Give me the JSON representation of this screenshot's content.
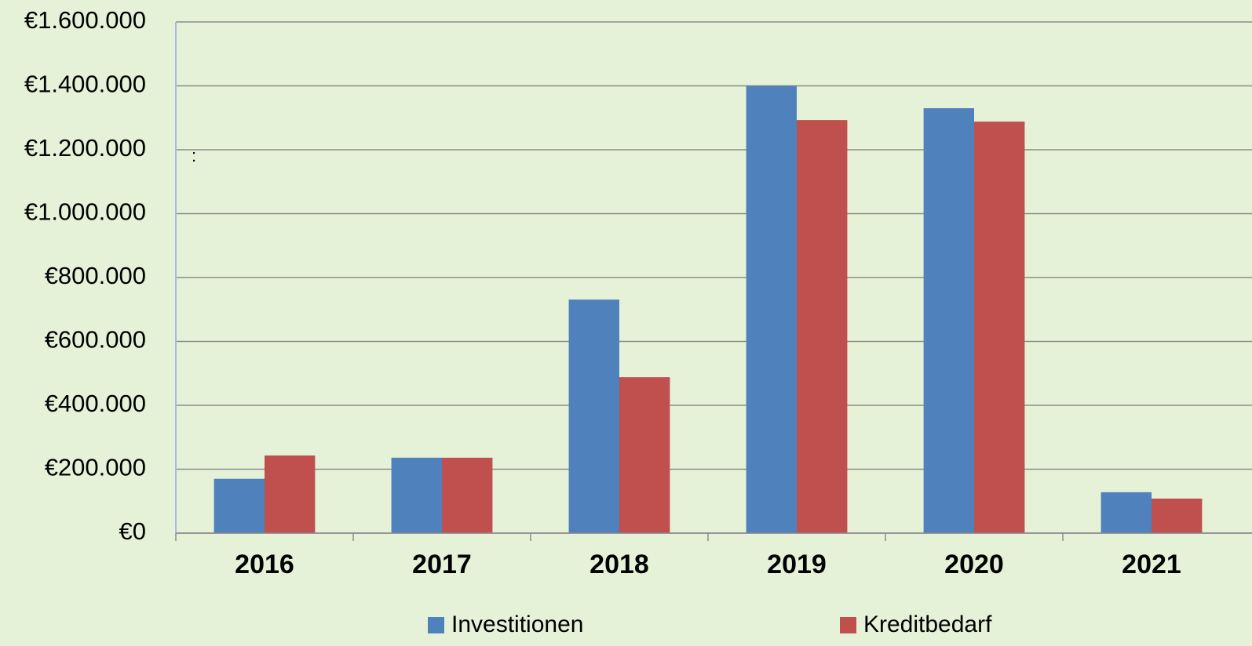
{
  "chart_data": {
    "type": "bar",
    "categories": [
      "2016",
      "2017",
      "2018",
      "2019",
      "2020",
      "2021"
    ],
    "series": [
      {
        "name": "Investitionen",
        "color": "#4f81bd",
        "values": [
          170000,
          236000,
          731000,
          1400000,
          1330000,
          128000
        ]
      },
      {
        "name": "Kreditbedarf",
        "color": "#c0504d",
        "values": [
          243000,
          236000,
          488000,
          1293000,
          1288000,
          108000
        ]
      }
    ],
    "ylim": [
      0,
      1600000
    ],
    "yticks": [
      {
        "value": 0,
        "label": "€0"
      },
      {
        "value": 200000,
        "label": "€200.000"
      },
      {
        "value": 400000,
        "label": "€400.000"
      },
      {
        "value": 600000,
        "label": "€600.000"
      },
      {
        "value": 800000,
        "label": "€800.000"
      },
      {
        "value": 1000000,
        "label": "€1.000.000"
      },
      {
        "value": 1200000,
        "label": "€1.200.000"
      },
      {
        "value": 1400000,
        "label": "€1.400.000"
      },
      {
        "value": 1600000,
        "label": "€1.600.000"
      }
    ],
    "grid": true,
    "legend": "bottom",
    "annotation": ":"
  }
}
